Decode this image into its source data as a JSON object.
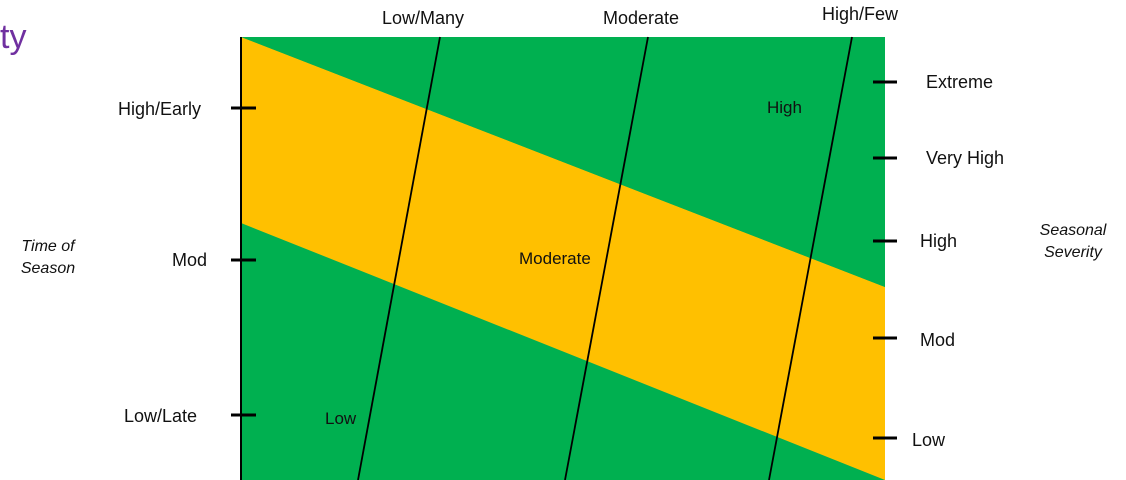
{
  "title_fragment": "ty",
  "top_axis": {
    "ticks": [
      "Low/Many",
      "Moderate",
      "High/Few"
    ]
  },
  "left_axis": {
    "title": [
      "Time of",
      "Season"
    ],
    "ticks": [
      "High/Early",
      "Mod",
      "Low/Late"
    ]
  },
  "right_axis": {
    "title": [
      "Seasonal",
      "Severity"
    ],
    "ticks": [
      "Extreme",
      "Very High",
      "High",
      "Mod",
      "Low"
    ]
  },
  "zones": [
    {
      "label": "Low",
      "color": "#00b050"
    },
    {
      "label": "Moderate",
      "color": "#ffc000"
    },
    {
      "label": "High",
      "color": "#00b050"
    }
  ],
  "colors": {
    "title": "#7030a0",
    "low_zone": "#00b050",
    "moderate_zone": "#ffc000",
    "high_zone": "#00b050",
    "lines": "#000000"
  }
}
